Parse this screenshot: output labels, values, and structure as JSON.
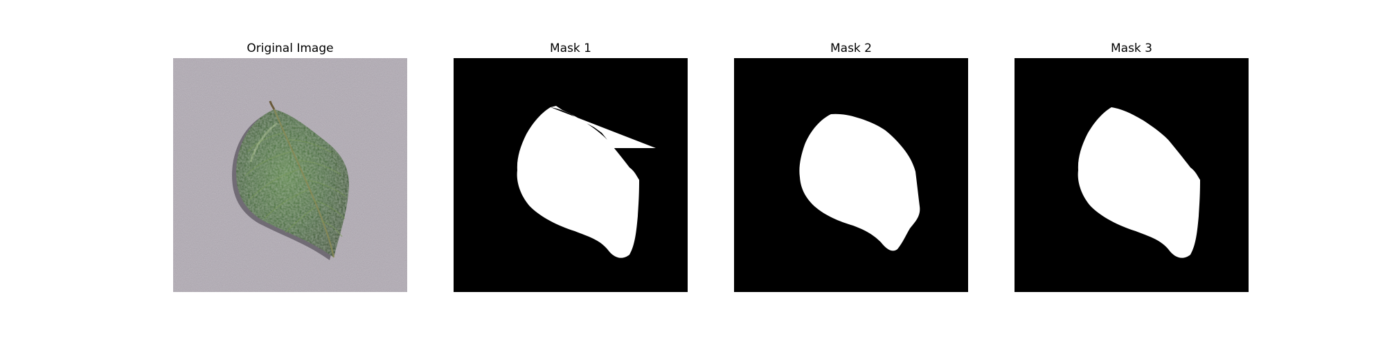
{
  "figure": {
    "panels": [
      {
        "title": "Original Image",
        "kind": "photo"
      },
      {
        "title": "Mask 1",
        "kind": "mask"
      },
      {
        "title": "Mask 2",
        "kind": "mask"
      },
      {
        "title": "Mask 3",
        "kind": "mask"
      }
    ]
  },
  "colors": {
    "background": "#ffffff",
    "mask_background": "#000000",
    "mask_foreground": "#ffffff",
    "leaf_green": "#2f5e22",
    "surface_gray": "#a69fa9"
  }
}
